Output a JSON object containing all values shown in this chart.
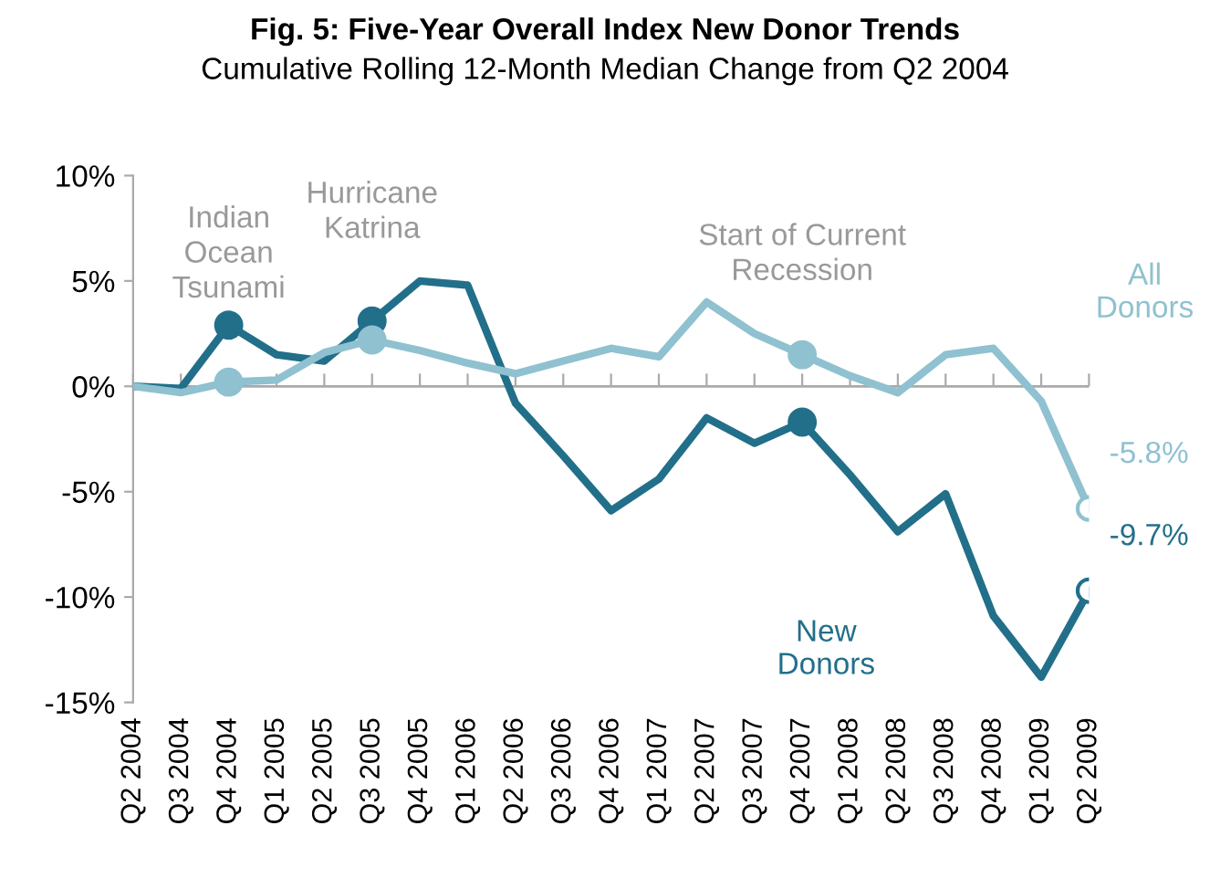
{
  "chart_data": {
    "type": "line",
    "title": "Fig. 5: Five-Year Overall Index New Donor Trends",
    "subtitle": "Cumulative Rolling 12-Month Median Change from Q2 2004",
    "categories": [
      "Q2 2004",
      "Q3 2004",
      "Q4 2004",
      "Q1 2005",
      "Q2 2005",
      "Q3 2005",
      "Q4 2005",
      "Q1 2006",
      "Q2 2006",
      "Q3 2006",
      "Q4 2006",
      "Q1 2007",
      "Q2 2007",
      "Q3 2007",
      "Q4 2007",
      "Q1 2008",
      "Q2 2008",
      "Q3 2008",
      "Q4 2008",
      "Q1 2009",
      "Q2 2009"
    ],
    "series": [
      {
        "name": "New Donors",
        "color": "#226f8a",
        "values": [
          0,
          -0.1,
          2.9,
          1.5,
          1.2,
          3.1,
          5.0,
          4.8,
          -0.8,
          -3.3,
          -5.9,
          -4.4,
          -1.5,
          -2.7,
          -1.7,
          -4.2,
          -6.9,
          -5.1,
          -10.9,
          -13.8,
          -9.7
        ],
        "value_labels": [
          null,
          null,
          null,
          null,
          null,
          null,
          null,
          null,
          null,
          null,
          null,
          null,
          null,
          null,
          null,
          null,
          null,
          null,
          null,
          null,
          "-9.7%"
        ]
      },
      {
        "name": "All Donors",
        "color": "#8fc1d0",
        "values": [
          0,
          -0.3,
          0.2,
          0.3,
          1.6,
          2.2,
          1.7,
          1.1,
          0.6,
          1.2,
          1.8,
          1.4,
          4.0,
          2.5,
          1.5,
          0.5,
          -0.3,
          1.5,
          1.8,
          -0.7,
          -5.8
        ],
        "value_labels": [
          null,
          null,
          null,
          null,
          null,
          null,
          null,
          null,
          null,
          null,
          null,
          null,
          null,
          null,
          null,
          null,
          null,
          null,
          null,
          null,
          "-5.8%"
        ]
      },
      {
        "type": "scatter",
        "color": "#226f8a",
        "x": [
          "Q4 2004",
          "Q3 2005",
          "Q4 2007"
        ],
        "values": [
          2.9,
          3.1,
          -1.7
        ],
        "marker": "circle"
      },
      {
        "type": "scatter",
        "color": "#8fc1d0",
        "x": [
          "Q4 2004",
          "Q3 2005",
          "Q4 2007"
        ],
        "values": [
          0.2,
          2.2,
          1.5
        ],
        "marker": "circle"
      }
    ],
    "annotations": [
      "Indian\nOcean\nTsunami",
      "Hurricane\nKatrina",
      "Start of Current\nRecession"
    ],
    "ref_lines": [
      {
        "axis": "y",
        "value": 0,
        "color": "#aaaaaa"
      }
    ],
    "ylim": [
      -15,
      10
    ],
    "yticks": [
      {
        "value": -15,
        "label": "-15%"
      },
      {
        "value": -10,
        "label": "-10%"
      },
      {
        "value": -5,
        "label": "-5%"
      },
      {
        "value": 0,
        "label": "0%"
      },
      {
        "value": 5,
        "label": "5%"
      },
      {
        "value": 10,
        "label": "10%"
      }
    ],
    "grid": false,
    "legend": false,
    "line_style": "solid"
  }
}
